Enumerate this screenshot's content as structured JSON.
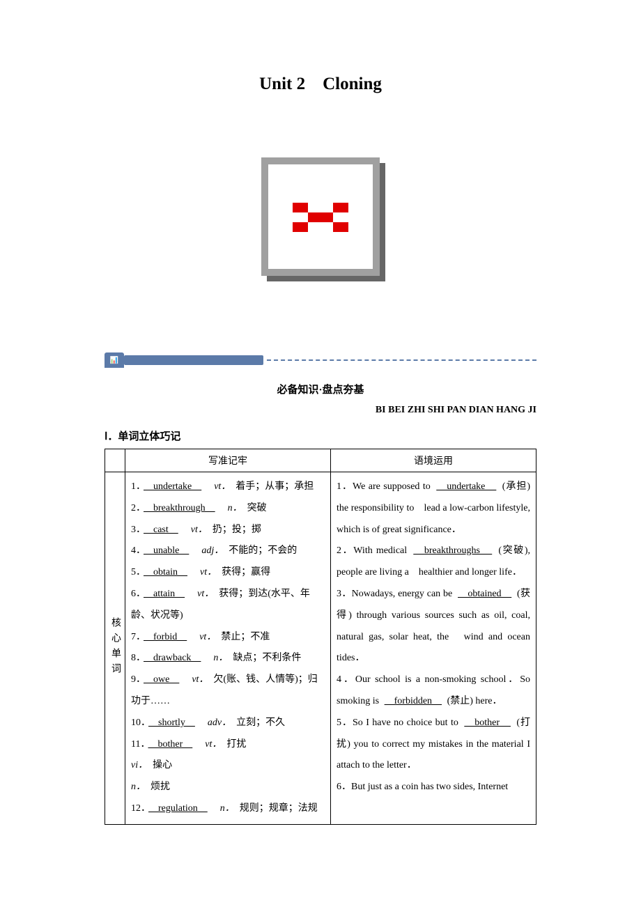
{
  "title": "Unit 2　Cloning",
  "section_title": "必备知识·盘点夯基",
  "section_subtitle": "BI BEI ZHI SHI PAN DIAN HANG JI",
  "subsection_title": "Ⅰ．单词立体巧记",
  "table": {
    "header_left": "写准记牢",
    "header_right": "语境运用",
    "row_label": "核心单词",
    "entries": [
      {
        "num": "1．",
        "word": "undertake",
        "pos": "vt．",
        "def": "着手；从事；承担"
      },
      {
        "num": "2．",
        "word": "breakthrough",
        "pos": "n．",
        "def": "突破"
      },
      {
        "num": "3．",
        "word": "cast",
        "pos": "vt．",
        "def": "扔；投；掷"
      },
      {
        "num": "4．",
        "word": "unable",
        "pos": "adj．",
        "def": "不能的；不会的"
      },
      {
        "num": "5．",
        "word": "obtain",
        "pos": "vt．",
        "def": "获得；赢得"
      },
      {
        "num": "6．",
        "word": "attain",
        "pos": "vt．",
        "def": "获得；到达(水平、年龄、状况等)"
      },
      {
        "num": "7．",
        "word": "forbid",
        "pos": "vt．",
        "def": "禁止；不准"
      },
      {
        "num": "8．",
        "word": "drawback",
        "pos": "n．",
        "def": "缺点；不利条件"
      },
      {
        "num": "9．",
        "word": "owe",
        "pos": "vt．",
        "def": "欠(账、钱、人情等)；归功于……"
      },
      {
        "num": "10．",
        "word": "shortly",
        "pos": "adv．",
        "def": "立刻；不久"
      },
      {
        "num": "11．",
        "word": "bother",
        "pos": "vt．",
        "def": "打扰",
        "extra": [
          {
            "pos": "vi．",
            "def": "操心"
          },
          {
            "pos": "n．",
            "def": "烦扰"
          }
        ]
      },
      {
        "num": "12．",
        "word": "regulation",
        "pos": "n．",
        "def": "规则；规章；法规"
      }
    ],
    "sentences": [
      {
        "num": "1．",
        "pre": "We are supposed to ",
        "word": "undertake",
        "hint": "(承担)",
        "post": " the responsibility to　lead a low-carbon lifestyle, which is of great significance．"
      },
      {
        "num": "2．",
        "pre": "With medical ",
        "word": "breakthroughs",
        "hint": "(突破)",
        "post": ", people are living a　healthier and longer life．"
      },
      {
        "num": "3．",
        "pre": "Nowadays, energy can be ",
        "word": "obtained",
        "hint": "(获得)",
        "post": " through various sources such as oil, coal, natural gas, solar heat, the　wind and ocean tides．"
      },
      {
        "num": "4．",
        "pre": "Our school is a non-smoking school．So smoking is ",
        "word": "forbidden",
        "hint": "(禁止)",
        "post": " here．"
      },
      {
        "num": "5．",
        "pre": "So I have no choice but to ",
        "word": "bother",
        "hint": "(打扰)",
        "post": " you to correct my mistakes in the material I attach to the letter．"
      },
      {
        "num": "6．",
        "pre": "But just as a coin has two sides, Internet",
        "word": "",
        "hint": "",
        "post": ""
      }
    ]
  }
}
